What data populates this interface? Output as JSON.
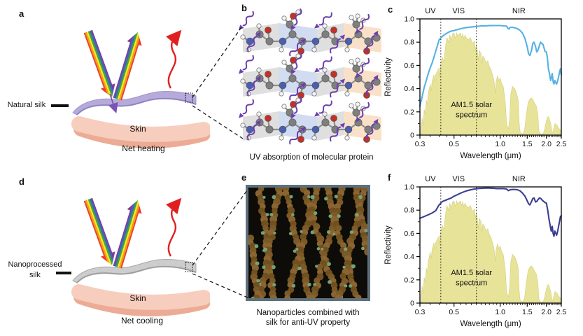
{
  "figure": {
    "panels": {
      "a": {
        "letter": "a",
        "silk_label": "Natural silk",
        "skin_label": "Skin",
        "caption": "Net heating"
      },
      "b": {
        "letter": "b",
        "caption": "UV absorption of molecular protein"
      },
      "c": {
        "letter": "c"
      },
      "d": {
        "letter": "d",
        "silk_label_line1": "Nanoprocessed",
        "silk_label_line2": "silk",
        "skin_label": "Skin",
        "caption": "Net cooling"
      },
      "e": {
        "letter": "e",
        "caption_line1": "Nanoparticles combined with",
        "caption_line2": "silk for anti-UV property"
      },
      "f": {
        "letter": "f"
      }
    },
    "colors": {
      "silk_natural": "#b5aad9",
      "silk_nano": "#dadada",
      "skin": "#f7cdbe",
      "skin_shadow": "#ecab94",
      "heat_arrow": "#e02020",
      "uv_squiggle": "#6b3fae",
      "solar_fill": "#e7e399",
      "reflectivity_c": "#55b1e3",
      "reflectivity_f": "#3b3e92",
      "rainbow": [
        "#7b3da0",
        "#3c6cb4",
        "#41a443",
        "#f5e71d",
        "#f59a1d",
        "#e8402f"
      ]
    }
  },
  "chart_data": {
    "shared": {
      "solar_spectrum": {
        "name": "AM1.5 solar spectrum",
        "points": [
          [
            0.3,
            0.0
          ],
          [
            0.305,
            0.02
          ],
          [
            0.31,
            0.15
          ],
          [
            0.315,
            0.08
          ],
          [
            0.32,
            0.22
          ],
          [
            0.325,
            0.18
          ],
          [
            0.33,
            0.3
          ],
          [
            0.335,
            0.26
          ],
          [
            0.34,
            0.36
          ],
          [
            0.35,
            0.44
          ],
          [
            0.355,
            0.38
          ],
          [
            0.36,
            0.46
          ],
          [
            0.37,
            0.52
          ],
          [
            0.375,
            0.46
          ],
          [
            0.38,
            0.52
          ],
          [
            0.39,
            0.55
          ],
          [
            0.4,
            0.58
          ],
          [
            0.405,
            0.5
          ],
          [
            0.41,
            0.62
          ],
          [
            0.42,
            0.67
          ],
          [
            0.43,
            0.63
          ],
          [
            0.44,
            0.76
          ],
          [
            0.45,
            0.84
          ],
          [
            0.46,
            0.8
          ],
          [
            0.47,
            0.86
          ],
          [
            0.48,
            0.82
          ],
          [
            0.49,
            0.87
          ],
          [
            0.5,
            0.88
          ],
          [
            0.51,
            0.83
          ],
          [
            0.52,
            0.88
          ],
          [
            0.53,
            0.85
          ],
          [
            0.54,
            0.87
          ],
          [
            0.55,
            0.88
          ],
          [
            0.56,
            0.84
          ],
          [
            0.57,
            0.87
          ],
          [
            0.58,
            0.83
          ],
          [
            0.59,
            0.86
          ],
          [
            0.6,
            0.84
          ],
          [
            0.62,
            0.82
          ],
          [
            0.64,
            0.84
          ],
          [
            0.66,
            0.79
          ],
          [
            0.68,
            0.81
          ],
          [
            0.69,
            0.73
          ],
          [
            0.7,
            0.78
          ],
          [
            0.71,
            0.72
          ],
          [
            0.72,
            0.64
          ],
          [
            0.73,
            0.73
          ],
          [
            0.75,
            0.7
          ],
          [
            0.76,
            0.61
          ],
          [
            0.77,
            0.68
          ],
          [
            0.79,
            0.66
          ],
          [
            0.81,
            0.62
          ],
          [
            0.83,
            0.64
          ],
          [
            0.85,
            0.59
          ],
          [
            0.87,
            0.57
          ],
          [
            0.89,
            0.52
          ],
          [
            0.91,
            0.48
          ],
          [
            0.93,
            0.36
          ],
          [
            0.94,
            0.46
          ],
          [
            0.96,
            0.51
          ],
          [
            0.98,
            0.47
          ],
          [
            1.0,
            0.49
          ],
          [
            1.02,
            0.45
          ],
          [
            1.05,
            0.41
          ],
          [
            1.08,
            0.28
          ],
          [
            1.1,
            0.1
          ],
          [
            1.13,
            0.05
          ],
          [
            1.15,
            0.12
          ],
          [
            1.17,
            0.35
          ],
          [
            1.2,
            0.42
          ],
          [
            1.24,
            0.4
          ],
          [
            1.28,
            0.36
          ],
          [
            1.31,
            0.3
          ],
          [
            1.33,
            0.1
          ],
          [
            1.35,
            0.02
          ],
          [
            1.4,
            0.01
          ],
          [
            1.44,
            0.04
          ],
          [
            1.48,
            0.18
          ],
          [
            1.52,
            0.28
          ],
          [
            1.56,
            0.31
          ],
          [
            1.6,
            0.32
          ],
          [
            1.64,
            0.3
          ],
          [
            1.68,
            0.27
          ],
          [
            1.72,
            0.25
          ],
          [
            1.76,
            0.18
          ],
          [
            1.78,
            0.06
          ],
          [
            1.8,
            0.02
          ],
          [
            1.85,
            0.01
          ],
          [
            1.9,
            0.01
          ],
          [
            1.94,
            0.04
          ],
          [
            1.98,
            0.1
          ],
          [
            2.02,
            0.15
          ],
          [
            2.06,
            0.16
          ],
          [
            2.1,
            0.13
          ],
          [
            2.14,
            0.09
          ],
          [
            2.17,
            0.03
          ],
          [
            2.2,
            0.02
          ],
          [
            2.24,
            0.07
          ],
          [
            2.28,
            0.1
          ],
          [
            2.32,
            0.09
          ],
          [
            2.36,
            0.08
          ],
          [
            2.4,
            0.06
          ],
          [
            2.44,
            0.05
          ],
          [
            2.48,
            0.04
          ],
          [
            2.5,
            0.03
          ]
        ]
      }
    },
    "charts": [
      {
        "panel": "c",
        "type": "line",
        "x_scale": "log",
        "xlim": [
          0.3,
          2.5
        ],
        "ylim": [
          0,
          1.0
        ],
        "xlabel": "Wavelength (μm)",
        "ylabel": "Reflectivity",
        "x_ticks": [
          "0.3",
          "0.5",
          "1.0",
          "1.5",
          "2.0",
          "2.5"
        ],
        "x_tick_values": [
          0.3,
          0.5,
          1.0,
          1.5,
          2.0,
          2.5
        ],
        "y_tick_labels": [
          "0",
          "0.2",
          "0.4",
          "0.6",
          "0.8",
          "1.0"
        ],
        "y_tick_values": [
          0,
          0.2,
          0.4,
          0.6,
          0.8,
          1.0
        ],
        "regions": [
          "UV",
          "VIS",
          "NIR"
        ],
        "region_boundaries_um": [
          0.41,
          0.7
        ],
        "annotation_lines": [
          "AM1.5 solar",
          "spectrum"
        ],
        "series_name": "Natural silk reflectivity",
        "line_color": "#55b1e3",
        "solar_fill": "#e7e399",
        "reflectivity_points": [
          [
            0.3,
            0.25
          ],
          [
            0.31,
            0.33
          ],
          [
            0.32,
            0.41
          ],
          [
            0.33,
            0.47
          ],
          [
            0.34,
            0.53
          ],
          [
            0.35,
            0.58
          ],
          [
            0.36,
            0.62
          ],
          [
            0.37,
            0.67
          ],
          [
            0.38,
            0.72
          ],
          [
            0.39,
            0.77
          ],
          [
            0.4,
            0.82
          ],
          [
            0.42,
            0.85
          ],
          [
            0.44,
            0.87
          ],
          [
            0.46,
            0.885
          ],
          [
            0.48,
            0.895
          ],
          [
            0.5,
            0.9
          ],
          [
            0.55,
            0.915
          ],
          [
            0.6,
            0.925
          ],
          [
            0.65,
            0.93
          ],
          [
            0.7,
            0.935
          ],
          [
            0.75,
            0.94
          ],
          [
            0.8,
            0.94
          ],
          [
            0.85,
            0.942
          ],
          [
            0.9,
            0.943
          ],
          [
            0.95,
            0.943
          ],
          [
            1.0,
            0.943
          ],
          [
            1.05,
            0.94
          ],
          [
            1.1,
            0.938
          ],
          [
            1.12,
            0.92
          ],
          [
            1.14,
            0.912
          ],
          [
            1.16,
            0.928
          ],
          [
            1.2,
            0.928
          ],
          [
            1.25,
            0.922
          ],
          [
            1.3,
            0.915
          ],
          [
            1.35,
            0.9
          ],
          [
            1.4,
            0.875
          ],
          [
            1.45,
            0.83
          ],
          [
            1.5,
            0.76
          ],
          [
            1.53,
            0.7
          ],
          [
            1.56,
            0.685
          ],
          [
            1.6,
            0.73
          ],
          [
            1.63,
            0.79
          ],
          [
            1.66,
            0.8
          ],
          [
            1.7,
            0.76
          ],
          [
            1.73,
            0.715
          ],
          [
            1.76,
            0.73
          ],
          [
            1.8,
            0.77
          ],
          [
            1.83,
            0.8
          ],
          [
            1.86,
            0.79
          ],
          [
            1.9,
            0.78
          ],
          [
            1.93,
            0.75
          ],
          [
            1.96,
            0.72
          ],
          [
            2.0,
            0.715
          ],
          [
            2.03,
            0.66
          ],
          [
            2.06,
            0.57
          ],
          [
            2.1,
            0.52
          ],
          [
            2.13,
            0.47
          ],
          [
            2.16,
            0.5
          ],
          [
            2.18,
            0.53
          ],
          [
            2.21,
            0.46
          ],
          [
            2.24,
            0.44
          ],
          [
            2.27,
            0.47
          ],
          [
            2.3,
            0.45
          ],
          [
            2.33,
            0.44
          ],
          [
            2.36,
            0.46
          ],
          [
            2.4,
            0.5
          ],
          [
            2.44,
            0.55
          ],
          [
            2.47,
            0.57
          ],
          [
            2.5,
            0.52
          ]
        ]
      },
      {
        "panel": "f",
        "type": "line",
        "x_scale": "log",
        "xlim": [
          0.3,
          2.5
        ],
        "ylim": [
          0,
          1.0
        ],
        "xlabel": "Wavelength (μm)",
        "ylabel": "Reflectivity",
        "x_ticks": [
          "0.3",
          "0.5",
          "1.0",
          "1.5",
          "2.0",
          "2.5"
        ],
        "x_tick_values": [
          0.3,
          0.5,
          1.0,
          1.5,
          2.0,
          2.5
        ],
        "y_tick_labels": [
          "0",
          "0.2",
          "0.4",
          "0.6",
          "0.8",
          "1.0"
        ],
        "y_tick_values": [
          0,
          0.2,
          0.4,
          0.6,
          0.8,
          1.0
        ],
        "regions": [
          "UV",
          "VIS",
          "NIR"
        ],
        "region_boundaries_um": [
          0.41,
          0.7
        ],
        "annotation_lines": [
          "AM1.5 solar",
          "spectrum"
        ],
        "series_name": "Nanoprocessed silk reflectivity",
        "line_color": "#3b3e92",
        "solar_fill": "#e7e399",
        "reflectivity_points": [
          [
            0.3,
            0.73
          ],
          [
            0.32,
            0.745
          ],
          [
            0.34,
            0.76
          ],
          [
            0.36,
            0.775
          ],
          [
            0.38,
            0.795
          ],
          [
            0.4,
            0.845
          ],
          [
            0.42,
            0.875
          ],
          [
            0.44,
            0.885
          ],
          [
            0.46,
            0.895
          ],
          [
            0.48,
            0.905
          ],
          [
            0.5,
            0.92
          ],
          [
            0.53,
            0.935
          ],
          [
            0.56,
            0.95
          ],
          [
            0.6,
            0.965
          ],
          [
            0.64,
            0.975
          ],
          [
            0.68,
            0.982
          ],
          [
            0.72,
            0.986
          ],
          [
            0.76,
            0.988
          ],
          [
            0.8,
            0.99
          ],
          [
            0.85,
            0.99
          ],
          [
            0.9,
            0.988
          ],
          [
            0.95,
            0.985
          ],
          [
            1.0,
            0.985
          ],
          [
            1.05,
            0.985
          ],
          [
            1.1,
            0.982
          ],
          [
            1.13,
            0.968
          ],
          [
            1.16,
            0.975
          ],
          [
            1.2,
            0.978
          ],
          [
            1.25,
            0.978
          ],
          [
            1.3,
            0.975
          ],
          [
            1.35,
            0.965
          ],
          [
            1.4,
            0.945
          ],
          [
            1.45,
            0.92
          ],
          [
            1.5,
            0.88
          ],
          [
            1.53,
            0.855
          ],
          [
            1.56,
            0.845
          ],
          [
            1.6,
            0.875
          ],
          [
            1.63,
            0.9
          ],
          [
            1.66,
            0.905
          ],
          [
            1.7,
            0.87
          ],
          [
            1.73,
            0.875
          ],
          [
            1.76,
            0.89
          ],
          [
            1.8,
            0.905
          ],
          [
            1.84,
            0.9
          ],
          [
            1.88,
            0.885
          ],
          [
            1.92,
            0.875
          ],
          [
            1.96,
            0.865
          ],
          [
            2.0,
            0.86
          ],
          [
            2.04,
            0.8
          ],
          [
            2.08,
            0.72
          ],
          [
            2.12,
            0.66
          ],
          [
            2.15,
            0.62
          ],
          [
            2.18,
            0.66
          ],
          [
            2.21,
            0.6
          ],
          [
            2.24,
            0.575
          ],
          [
            2.27,
            0.62
          ],
          [
            2.3,
            0.6
          ],
          [
            2.33,
            0.585
          ],
          [
            2.36,
            0.61
          ],
          [
            2.4,
            0.66
          ],
          [
            2.44,
            0.71
          ],
          [
            2.47,
            0.745
          ],
          [
            2.5,
            0.75
          ]
        ]
      }
    ]
  }
}
